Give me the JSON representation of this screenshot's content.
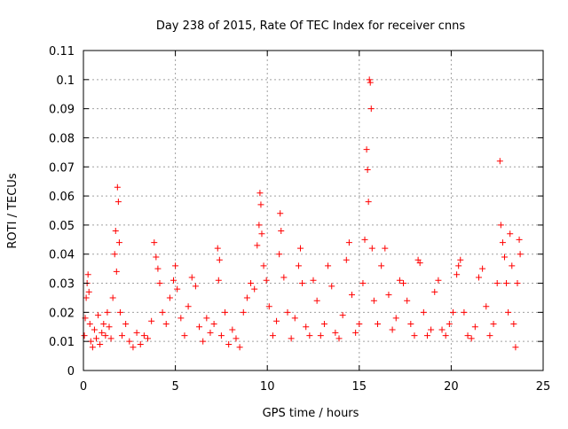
{
  "chart_data": {
    "type": "scatter",
    "title": "Day 238 of 2015, Rate Of TEC Index for receiver cnns",
    "xlabel": "GPS time / hours",
    "ylabel": "ROTI / TECUs",
    "xlim": [
      0,
      25
    ],
    "ylim": [
      0,
      0.11
    ],
    "xticks": [
      0,
      5,
      10,
      15,
      20,
      25
    ],
    "xtick_labels": [
      "0",
      "5",
      "10",
      "15",
      "20",
      "25"
    ],
    "yticks": [
      0,
      0.01,
      0.02,
      0.03,
      0.04,
      0.05,
      0.06,
      0.07,
      0.08,
      0.09,
      0.1,
      0.11
    ],
    "ytick_labels": [
      "0",
      "0.01",
      "0.02",
      "0.03",
      "0.04",
      "0.05",
      "0.06",
      "0.07",
      "0.08",
      "0.09",
      "0.1",
      "0.11"
    ],
    "grid": true,
    "marker": "+",
    "series": [
      {
        "name": "ROTI",
        "color": "#ff0000",
        "points": [
          [
            0.05,
            0.012
          ],
          [
            0.1,
            0.018
          ],
          [
            0.15,
            0.025
          ],
          [
            0.2,
            0.03
          ],
          [
            0.25,
            0.033
          ],
          [
            0.3,
            0.027
          ],
          [
            0.35,
            0.016
          ],
          [
            0.4,
            0.01
          ],
          [
            0.5,
            0.008
          ],
          [
            0.6,
            0.014
          ],
          [
            0.7,
            0.011
          ],
          [
            0.8,
            0.019
          ],
          [
            0.9,
            0.009
          ],
          [
            1.0,
            0.013
          ],
          [
            1.1,
            0.016
          ],
          [
            1.2,
            0.012
          ],
          [
            1.3,
            0.02
          ],
          [
            1.4,
            0.015
          ],
          [
            1.5,
            0.011
          ],
          [
            1.6,
            0.025
          ],
          [
            1.7,
            0.04
          ],
          [
            1.75,
            0.048
          ],
          [
            1.8,
            0.034
          ],
          [
            1.85,
            0.063
          ],
          [
            1.9,
            0.058
          ],
          [
            1.95,
            0.044
          ],
          [
            2.0,
            0.02
          ],
          [
            2.1,
            0.012
          ],
          [
            2.3,
            0.016
          ],
          [
            2.5,
            0.01
          ],
          [
            2.7,
            0.008
          ],
          [
            2.9,
            0.013
          ],
          [
            3.1,
            0.009
          ],
          [
            3.3,
            0.012
          ],
          [
            3.5,
            0.011
          ],
          [
            3.7,
            0.017
          ],
          [
            3.85,
            0.044
          ],
          [
            3.95,
            0.039
          ],
          [
            4.05,
            0.035
          ],
          [
            4.15,
            0.03
          ],
          [
            4.3,
            0.02
          ],
          [
            4.5,
            0.016
          ],
          [
            4.7,
            0.025
          ],
          [
            4.9,
            0.031
          ],
          [
            5.0,
            0.036
          ],
          [
            5.1,
            0.028
          ],
          [
            5.3,
            0.018
          ],
          [
            5.5,
            0.012
          ],
          [
            5.7,
            0.022
          ],
          [
            5.9,
            0.032
          ],
          [
            6.1,
            0.029
          ],
          [
            6.3,
            0.015
          ],
          [
            6.5,
            0.01
          ],
          [
            6.7,
            0.018
          ],
          [
            6.9,
            0.013
          ],
          [
            7.1,
            0.016
          ],
          [
            7.3,
            0.042
          ],
          [
            7.35,
            0.031
          ],
          [
            7.4,
            0.038
          ],
          [
            7.5,
            0.012
          ],
          [
            7.7,
            0.02
          ],
          [
            7.9,
            0.009
          ],
          [
            8.1,
            0.014
          ],
          [
            8.3,
            0.011
          ],
          [
            8.5,
            0.008
          ],
          [
            8.7,
            0.02
          ],
          [
            8.9,
            0.025
          ],
          [
            9.1,
            0.03
          ],
          [
            9.3,
            0.028
          ],
          [
            9.45,
            0.043
          ],
          [
            9.55,
            0.05
          ],
          [
            9.6,
            0.061
          ],
          [
            9.65,
            0.057
          ],
          [
            9.7,
            0.047
          ],
          [
            9.8,
            0.036
          ],
          [
            9.95,
            0.031
          ],
          [
            10.1,
            0.022
          ],
          [
            10.3,
            0.012
          ],
          [
            10.5,
            0.017
          ],
          [
            10.65,
            0.04
          ],
          [
            10.7,
            0.054
          ],
          [
            10.75,
            0.048
          ],
          [
            10.9,
            0.032
          ],
          [
            11.1,
            0.02
          ],
          [
            11.3,
            0.011
          ],
          [
            11.5,
            0.018
          ],
          [
            11.7,
            0.036
          ],
          [
            11.8,
            0.042
          ],
          [
            11.9,
            0.03
          ],
          [
            12.1,
            0.015
          ],
          [
            12.3,
            0.012
          ],
          [
            12.5,
            0.031
          ],
          [
            12.7,
            0.024
          ],
          [
            12.9,
            0.012
          ],
          [
            13.1,
            0.016
          ],
          [
            13.3,
            0.036
          ],
          [
            13.5,
            0.029
          ],
          [
            13.7,
            0.013
          ],
          [
            13.9,
            0.011
          ],
          [
            14.1,
            0.019
          ],
          [
            14.3,
            0.038
          ],
          [
            14.45,
            0.044
          ],
          [
            14.6,
            0.026
          ],
          [
            14.8,
            0.013
          ],
          [
            15.0,
            0.016
          ],
          [
            15.2,
            0.03
          ],
          [
            15.3,
            0.045
          ],
          [
            15.4,
            0.076
          ],
          [
            15.45,
            0.069
          ],
          [
            15.5,
            0.058
          ],
          [
            15.55,
            0.1
          ],
          [
            15.6,
            0.099
          ],
          [
            15.65,
            0.09
          ],
          [
            15.7,
            0.042
          ],
          [
            15.8,
            0.024
          ],
          [
            16.0,
            0.016
          ],
          [
            16.2,
            0.036
          ],
          [
            16.4,
            0.042
          ],
          [
            16.6,
            0.026
          ],
          [
            16.8,
            0.014
          ],
          [
            17.0,
            0.018
          ],
          [
            17.2,
            0.031
          ],
          [
            17.4,
            0.03
          ],
          [
            17.6,
            0.024
          ],
          [
            17.8,
            0.016
          ],
          [
            18.0,
            0.012
          ],
          [
            18.2,
            0.038
          ],
          [
            18.3,
            0.037
          ],
          [
            18.5,
            0.02
          ],
          [
            18.7,
            0.012
          ],
          [
            18.9,
            0.014
          ],
          [
            19.1,
            0.027
          ],
          [
            19.3,
            0.031
          ],
          [
            19.5,
            0.014
          ],
          [
            19.7,
            0.012
          ],
          [
            19.9,
            0.016
          ],
          [
            20.1,
            0.02
          ],
          [
            20.3,
            0.033
          ],
          [
            20.4,
            0.036
          ],
          [
            20.5,
            0.038
          ],
          [
            20.7,
            0.02
          ],
          [
            20.9,
            0.012
          ],
          [
            21.1,
            0.011
          ],
          [
            21.3,
            0.015
          ],
          [
            21.5,
            0.032
          ],
          [
            21.7,
            0.035
          ],
          [
            21.9,
            0.022
          ],
          [
            22.1,
            0.012
          ],
          [
            22.3,
            0.016
          ],
          [
            22.5,
            0.03
          ],
          [
            22.65,
            0.072
          ],
          [
            22.7,
            0.05
          ],
          [
            22.8,
            0.044
          ],
          [
            22.9,
            0.039
          ],
          [
            23.0,
            0.03
          ],
          [
            23.1,
            0.02
          ],
          [
            23.2,
            0.047
          ],
          [
            23.3,
            0.036
          ],
          [
            23.4,
            0.016
          ],
          [
            23.5,
            0.008
          ],
          [
            23.6,
            0.03
          ],
          [
            23.7,
            0.045
          ],
          [
            23.75,
            0.04
          ]
        ]
      }
    ]
  }
}
